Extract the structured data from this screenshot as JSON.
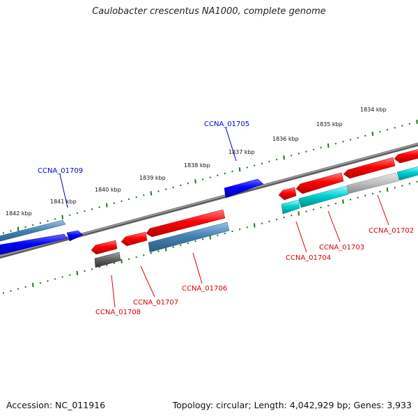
{
  "title": "Caulobacter crescentus NA1000, complete genome",
  "footer": {
    "accession": "Accession: NC_011916",
    "summary": "Topology: circular; Length: 4,042,929 bp; Genes: 3,933"
  },
  "colors": {
    "forward_strand": "#0000ff",
    "reverse_strand": "#ff0000",
    "forward_operon": "#4682b4",
    "reverse_operon": "#00c8c8",
    "tick": "#1a7a1a",
    "backbone": "#808080",
    "label_forward": "#0000c8",
    "label_reverse": "#d40000"
  },
  "scale_ticks": [
    "1834 kbp",
    "1835 kbp",
    "1836 kbp",
    "1837 kbp",
    "1838 kbp",
    "1839 kbp",
    "1840 kbp",
    "1841 kbp",
    "1842 kbp"
  ],
  "gene_labels": [
    {
      "id": "CCNA_01705",
      "strand": "forward"
    },
    {
      "id": "CCNA_01709",
      "strand": "forward"
    },
    {
      "id": "CCNA_01702",
      "strand": "reverse"
    },
    {
      "id": "CCNA_01703",
      "strand": "reverse"
    },
    {
      "id": "CCNA_01704",
      "strand": "reverse"
    },
    {
      "id": "CCNA_01706",
      "strand": "reverse"
    },
    {
      "id": "CCNA_01707",
      "strand": "reverse"
    },
    {
      "id": "CCNA_01708",
      "strand": "reverse"
    }
  ]
}
